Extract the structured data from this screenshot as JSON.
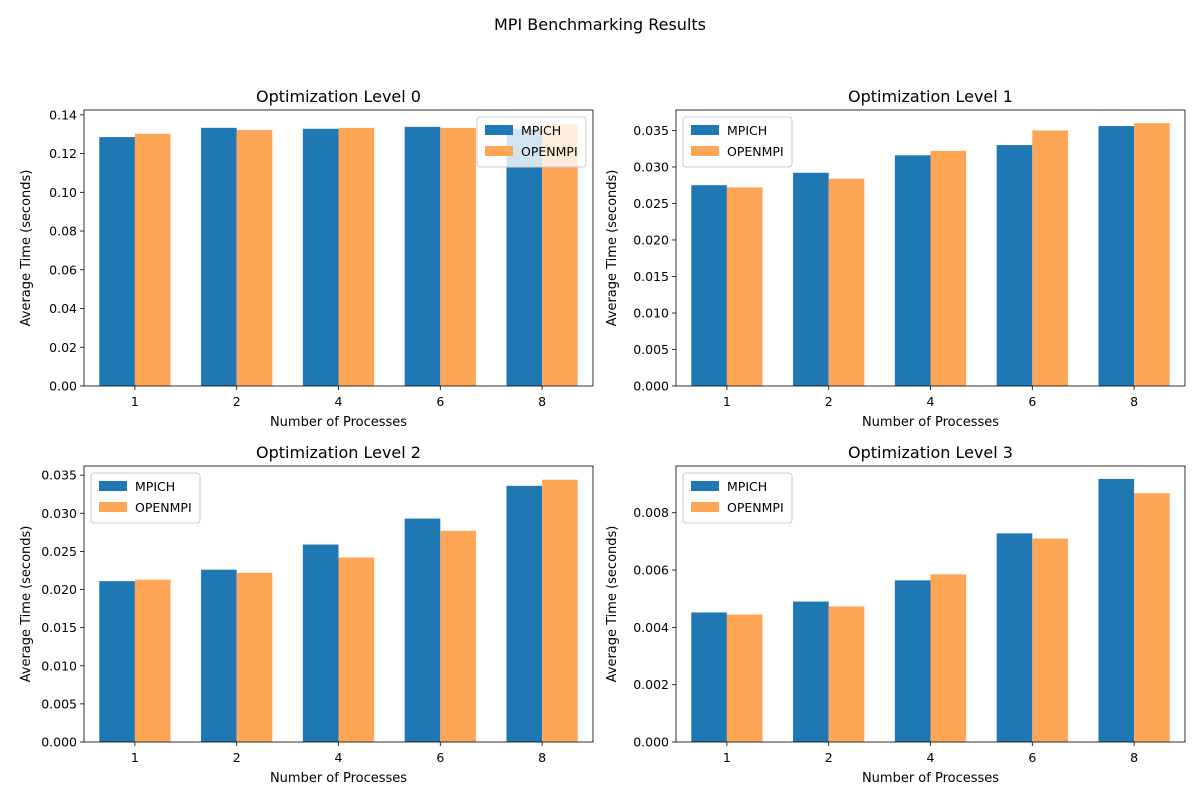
{
  "figure_title": "MPI Benchmarking Results",
  "colors": {
    "MPICH": "#1f77b4",
    "OPENMPI": "#ffa556"
  },
  "chart_data": [
    {
      "type": "bar",
      "title": "Optimization Level 0",
      "xlabel": "Number of Processes",
      "ylabel": "Average Time (seconds)",
      "categories": [
        "1",
        "2",
        "4",
        "6",
        "8"
      ],
      "ylim": [
        0,
        0.1425
      ],
      "yticks": [
        "0.00",
        "0.02",
        "0.04",
        "0.06",
        "0.08",
        "0.10",
        "0.12",
        "0.14"
      ],
      "ytick_values": [
        0,
        0.02,
        0.04,
        0.06,
        0.08,
        0.1,
        0.12,
        0.14
      ],
      "legend": "top-right",
      "series": [
        {
          "name": "MPICH",
          "values": [
            0.1285,
            0.1333,
            0.1328,
            0.1338,
            0.1328
          ]
        },
        {
          "name": "OPENMPI",
          "values": [
            0.1302,
            0.1322,
            0.1333,
            0.1333,
            0.1353
          ]
        }
      ]
    },
    {
      "type": "bar",
      "title": "Optimization Level 1",
      "xlabel": "Number of Processes",
      "ylabel": "Average Time (seconds)",
      "categories": [
        "1",
        "2",
        "4",
        "6",
        "8"
      ],
      "ylim": [
        0,
        0.0378
      ],
      "yticks": [
        "0.000",
        "0.005",
        "0.010",
        "0.015",
        "0.020",
        "0.025",
        "0.030",
        "0.035"
      ],
      "ytick_values": [
        0,
        0.005,
        0.01,
        0.015,
        0.02,
        0.025,
        0.03,
        0.035
      ],
      "legend": "top-left",
      "series": [
        {
          "name": "MPICH",
          "values": [
            0.0275,
            0.0292,
            0.0316,
            0.033,
            0.0356
          ]
        },
        {
          "name": "OPENMPI",
          "values": [
            0.0272,
            0.0284,
            0.0322,
            0.035,
            0.036
          ]
        }
      ]
    },
    {
      "type": "bar",
      "title": "Optimization Level 2",
      "xlabel": "Number of Processes",
      "ylabel": "Average Time (seconds)",
      "categories": [
        "1",
        "2",
        "4",
        "6",
        "8"
      ],
      "ylim": [
        0,
        0.0362
      ],
      "yticks": [
        "0.000",
        "0.005",
        "0.010",
        "0.015",
        "0.020",
        "0.025",
        "0.030",
        "0.035"
      ],
      "ytick_values": [
        0,
        0.005,
        0.01,
        0.015,
        0.02,
        0.025,
        0.03,
        0.035
      ],
      "legend": "top-left",
      "series": [
        {
          "name": "MPICH",
          "values": [
            0.0211,
            0.0226,
            0.0259,
            0.0293,
            0.0336
          ]
        },
        {
          "name": "OPENMPI",
          "values": [
            0.0213,
            0.0222,
            0.0242,
            0.0277,
            0.0344
          ]
        }
      ]
    },
    {
      "type": "bar",
      "title": "Optimization Level 3",
      "xlabel": "Number of Processes",
      "ylabel": "Average Time (seconds)",
      "categories": [
        "1",
        "2",
        "4",
        "6",
        "8"
      ],
      "ylim": [
        0,
        0.00963
      ],
      "yticks": [
        "0.000",
        "0.002",
        "0.004",
        "0.006",
        "0.008"
      ],
      "ytick_values": [
        0,
        0.002,
        0.004,
        0.006,
        0.008
      ],
      "legend": "top-left",
      "series": [
        {
          "name": "MPICH",
          "values": [
            0.00452,
            0.0049,
            0.00564,
            0.00728,
            0.00918
          ]
        },
        {
          "name": "OPENMPI",
          "values": [
            0.00445,
            0.00473,
            0.00585,
            0.0071,
            0.00868
          ]
        }
      ]
    }
  ]
}
